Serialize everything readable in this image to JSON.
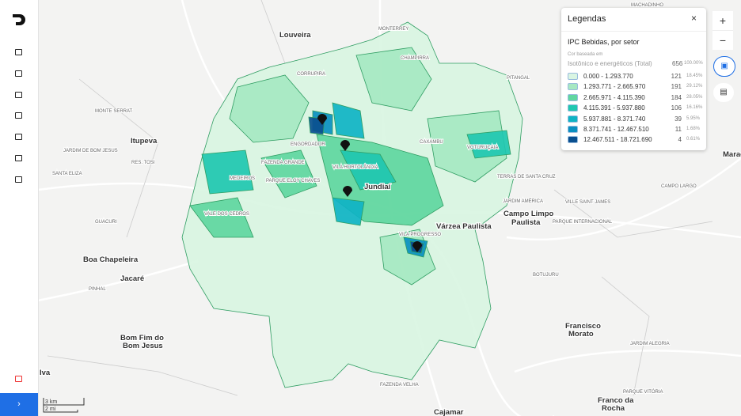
{
  "legend": {
    "header": "Legendas",
    "layer": "IPC Bebidas, por setor",
    "color_by_label": "Cor baseada em",
    "variable": "Isotônico e energéticos (Total)",
    "total_count": 656,
    "total_percent": "100.00%",
    "classes": [
      {
        "range": "0.000 - 1.293.770",
        "count": 121,
        "percent": "18.45%",
        "color": "#d9f5e2"
      },
      {
        "range": "1.293.771 - 2.665.970",
        "count": 191,
        "percent": "29.12%",
        "color": "#a6e8c2"
      },
      {
        "range": "2.665.971 - 4.115.390",
        "count": 184,
        "percent": "28.05%",
        "color": "#5fd6a0"
      },
      {
        "range": "4.115.391 - 5.937.880",
        "count": 106,
        "percent": "16.16%",
        "color": "#1fc7b0"
      },
      {
        "range": "5.937.881 - 8.371.740",
        "count": 39,
        "percent": "5.95%",
        "color": "#0fb3c4"
      },
      {
        "range": "8.371.741 - 12.467.510",
        "count": 11,
        "percent": "1.68%",
        "color": "#0a8fc0"
      },
      {
        "range": "12.467.511 - 18.721.690",
        "count": 4,
        "percent": "0.61%",
        "color": "#0a4f8f"
      }
    ]
  },
  "map": {
    "places": [
      "Louveira",
      "Itupeva",
      "Jundiaí",
      "Várzea Paulista",
      "Campo Limpo",
      "Paulista",
      "Boa Chapeleira",
      "Jacaré",
      "Bom Fim do",
      "Bom Jesus",
      "Francisco",
      "Morato",
      "Franco da",
      "Rocha",
      "Cajamar",
      "Maraó",
      "Iva"
    ],
    "areas": [
      "MONTE SERRAT",
      "PITANGAL",
      "CAXAMBU",
      "CORRUPIRA",
      "MONTERREY",
      "CHAMPIRRA",
      "VOTURUÇAIA",
      "ENGORDADOR",
      "VILA HORTOLÂNDIA",
      "MEDEIROS",
      "FAZENDA GRANDE",
      "PARQUE ELOY CHAVES",
      "VALE DOS CEDROS",
      "VILA PROGRESSO",
      "JARDIM DE BOM JESUS",
      "SANTA ELIZA",
      "RES. TOSI",
      "GUACURI",
      "PINHAL",
      "BOTUJURU",
      "CAMPO LARGO",
      "VILLE SAINT JAMES",
      "JARDIM ALEGRIA",
      "PARQUE VITÓRIA",
      "FAZENDA VELHA",
      "MACHADINHO",
      "PARQUE INTERNACIONAL",
      "JARDIM AMÉRICA",
      "TERRAS DE SANTA CRUZ"
    ],
    "scale": [
      "3 km",
      "2 mi"
    ]
  }
}
